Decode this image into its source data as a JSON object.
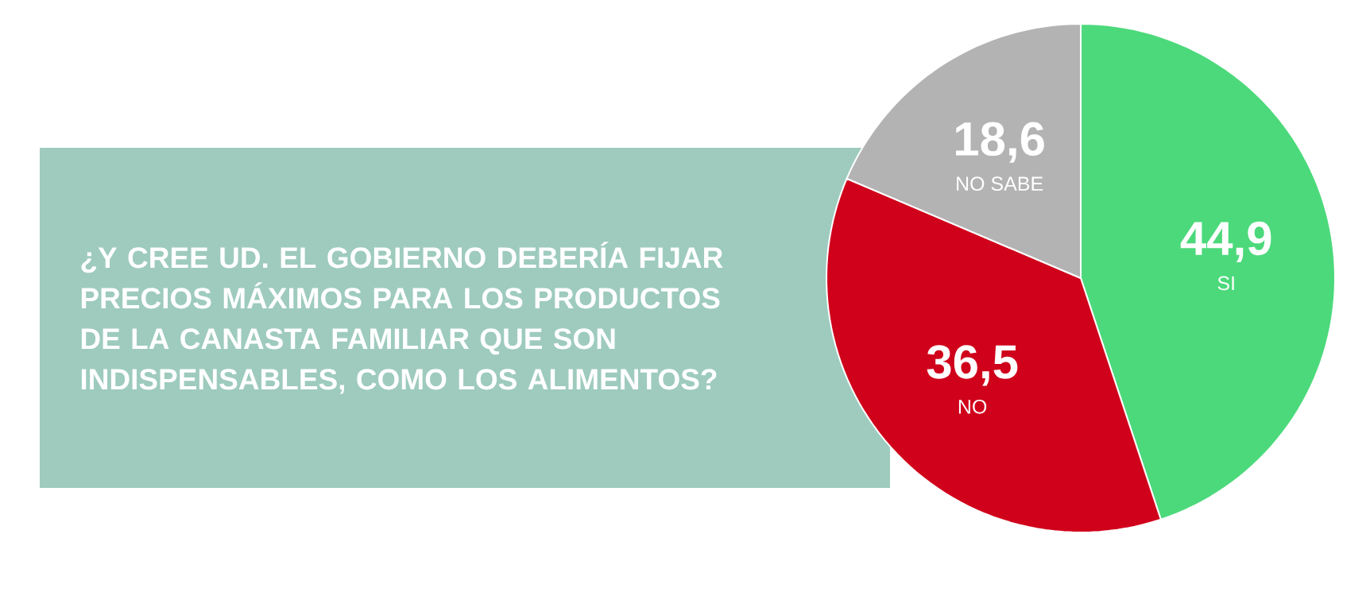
{
  "chart_data": {
    "type": "pie",
    "title": "¿Y CREE UD. EL GOBIERNO DEBERÍA FIJAR PRECIOS MÁXIMOS PARA LOS PRODUCTOS DE LA CANASTA FAMILIAR QUE SON INDISPENSABLES, COMO LOS ALIMENTOS?",
    "categories": [
      "SI",
      "NO",
      "NO SABE"
    ],
    "values": [
      44.9,
      36.5,
      18.6
    ],
    "value_labels": [
      "44,9",
      "36,5",
      "18,6"
    ],
    "colors": [
      "#4cd97b",
      "#d0021b",
      "#b3b3b3"
    ]
  }
}
